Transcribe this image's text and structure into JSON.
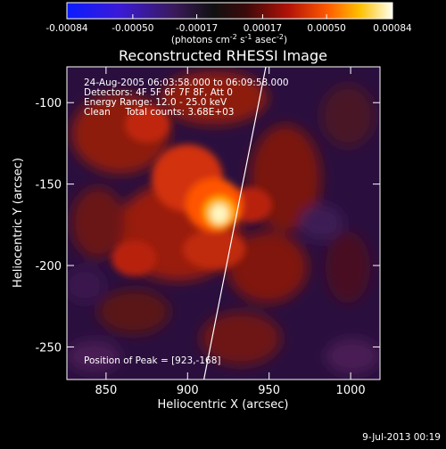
{
  "chart_data": {
    "type": "heatmap",
    "title": "Reconstructed RHESSI Image",
    "xlabel": "Heliocentric X (arcsec)",
    "ylabel": "Heliocentric Y (arcsec)",
    "xlim": [
      826,
      1018
    ],
    "ylim": [
      -270,
      -78
    ],
    "xticks": [
      850,
      900,
      950,
      1000
    ],
    "yticks": [
      -100,
      -150,
      -200,
      -250
    ],
    "colorbar": {
      "min": -0.00084,
      "max": 0.00084,
      "tick_labels": [
        "-0.00084",
        "-0.00050",
        "-0.00017",
        "0.00017",
        "0.00050",
        "0.00084"
      ],
      "label_main": "(photons cm",
      "label_exp1": "-2",
      "label_mid": " s",
      "label_exp2": "-1",
      "label_mid2": " asec",
      "label_exp3": "-2",
      "label_end": ")"
    },
    "annotations": {
      "time": "24-Aug-2005 06:03:58.000 to 06:09:58.000",
      "detectors": "Detectors: 4F 5F 6F 7F 8F, Att 0",
      "energy": "Energy Range: 12.0 - 25.0 keV",
      "method": "Clean     Total counts: 3.68E+03",
      "peak": "Position of Peak = [923,-168]"
    },
    "peak": {
      "x": 923,
      "y": -168
    },
    "limb_line": [
      [
        910,
        -270
      ],
      [
        948,
        -78
      ]
    ]
  },
  "footer": {
    "timestamp": "9-Jul-2013 00:19"
  }
}
